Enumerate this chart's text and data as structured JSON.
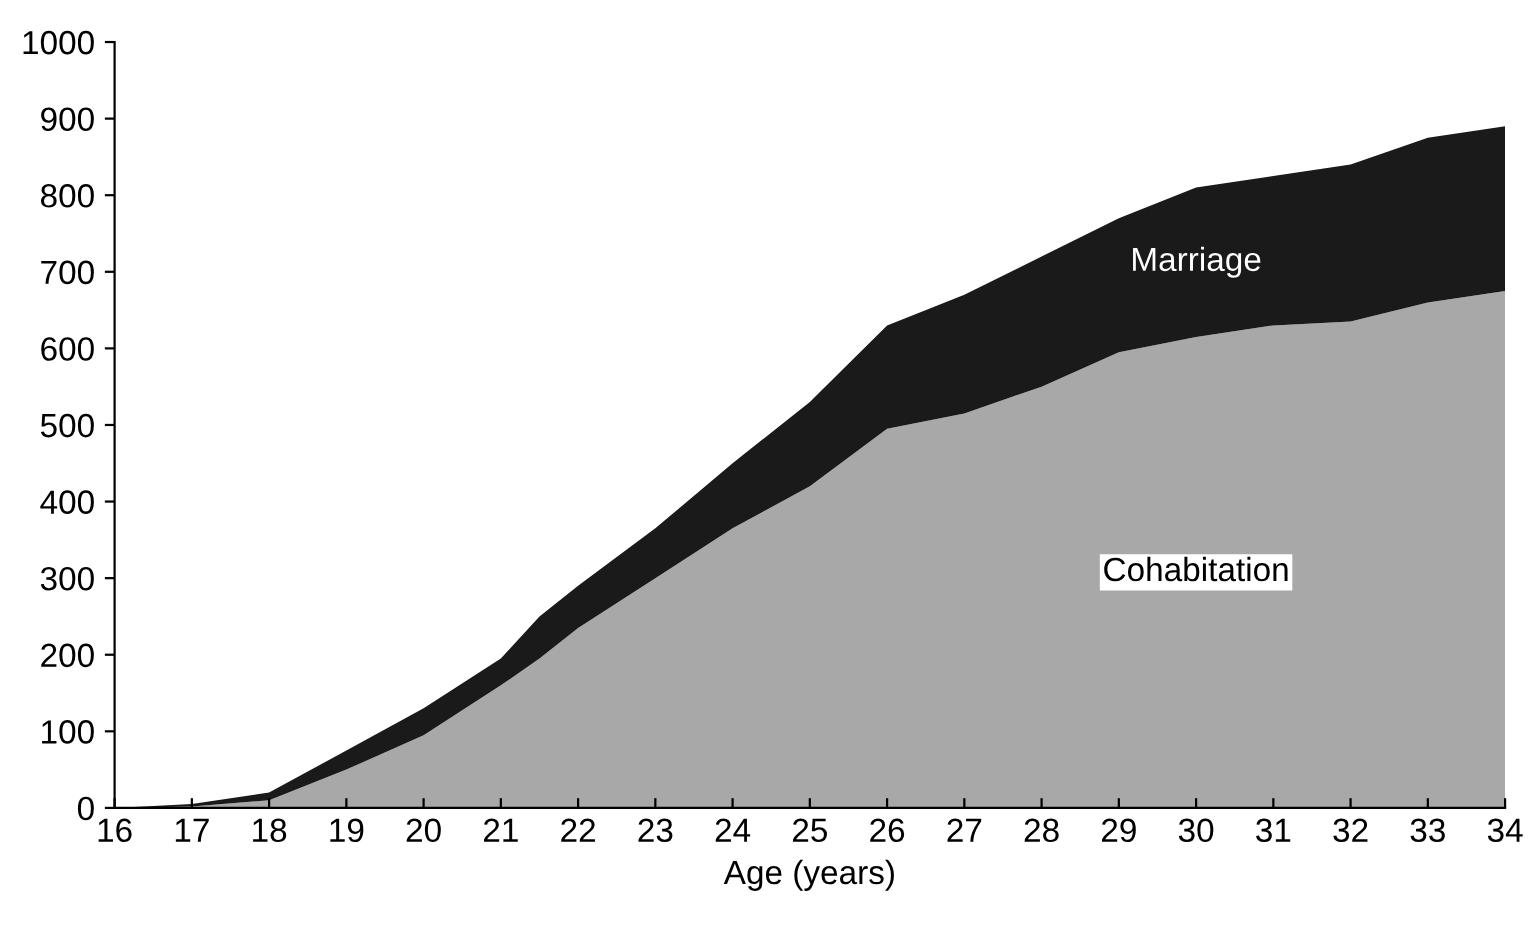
{
  "chart_data": {
    "type": "area",
    "stacked": true,
    "xlabel": "Age (years)",
    "x": [
      16,
      17,
      18,
      19,
      20,
      21,
      21.5,
      22,
      23,
      24,
      25,
      26,
      27,
      28,
      29,
      30,
      31,
      32,
      33,
      34
    ],
    "series": [
      {
        "name": "Cohabitation",
        "color": "#a8a8a8",
        "values": [
          0,
          2,
          10,
          50,
          95,
          160,
          195,
          235,
          300,
          365,
          420,
          495,
          515,
          550,
          595,
          615,
          630,
          635,
          660,
          675
        ]
      },
      {
        "name": "Marriage",
        "color": "#1a1a1a",
        "values": [
          0,
          3,
          10,
          25,
          35,
          35,
          55,
          55,
          65,
          85,
          110,
          135,
          155,
          170,
          175,
          195,
          195,
          205,
          215,
          215
        ]
      }
    ],
    "xlim": [
      16,
      34
    ],
    "xticks": [
      16,
      17,
      18,
      19,
      20,
      21,
      22,
      23,
      24,
      25,
      26,
      27,
      28,
      29,
      30,
      31,
      32,
      33,
      34
    ],
    "ylim": [
      0,
      1000
    ],
    "yticks": [
      0,
      100,
      200,
      300,
      400,
      500,
      600,
      700,
      800,
      900,
      1000
    ],
    "grid": false,
    "legend": false
  }
}
